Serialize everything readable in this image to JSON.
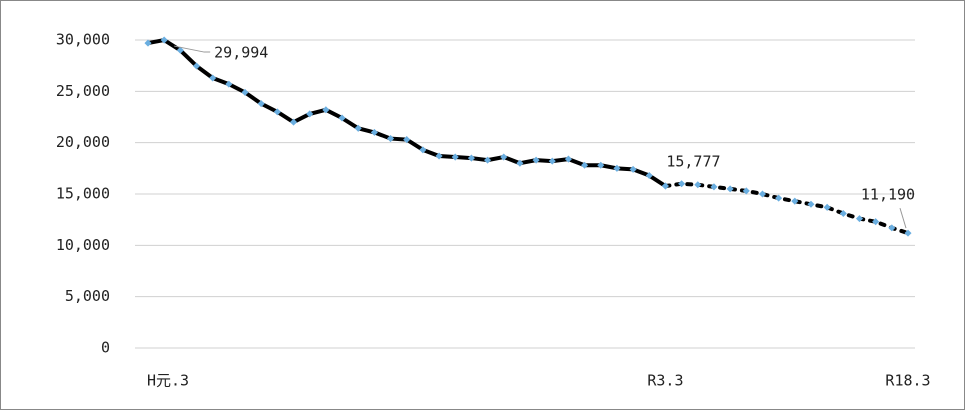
{
  "chart_data": {
    "type": "line",
    "categories": [
      "H元.3",
      null,
      null,
      null,
      null,
      null,
      null,
      null,
      null,
      null,
      null,
      null,
      null,
      null,
      null,
      null,
      null,
      null,
      null,
      null,
      null,
      null,
      null,
      null,
      null,
      null,
      null,
      null,
      null,
      null,
      null,
      null,
      "R3.3",
      null,
      null,
      null,
      null,
      null,
      null,
      null,
      null,
      null,
      null,
      null,
      null,
      null,
      null,
      "R18.3"
    ],
    "series": [
      {
        "color": "#000000",
        "marker_color": "#6aaee0",
        "line_style": "solid",
        "values": [
          29700,
          29994,
          29000,
          27470,
          26300,
          25700,
          24900,
          23800,
          23000,
          22000,
          22800,
          23200,
          22400,
          21400,
          21000,
          20400,
          20300,
          19300,
          18700,
          18600,
          18500,
          18300,
          18600,
          18000,
          18300,
          18200,
          18400,
          17800,
          17800,
          17500,
          17400,
          16800,
          15777,
          null,
          null,
          null,
          null,
          null,
          null,
          null,
          null,
          null,
          null,
          null,
          null,
          null,
          null,
          null
        ],
        "value_labels": [
          null,
          "29,994",
          null,
          null,
          null,
          null,
          null,
          null,
          null,
          null,
          null,
          null,
          null,
          null,
          null,
          null,
          null,
          null,
          null,
          null,
          null,
          null,
          null,
          null,
          null,
          null,
          null,
          null,
          null,
          null,
          null,
          null,
          "15,777",
          null,
          null,
          null,
          null,
          null,
          null,
          null,
          null,
          null,
          null,
          null,
          null,
          null,
          null,
          null
        ]
      },
      {
        "color": "#000000",
        "marker_color": "#6aaee0",
        "line_style": "dotted",
        "values": [
          null,
          null,
          null,
          null,
          null,
          null,
          null,
          null,
          null,
          null,
          null,
          null,
          null,
          null,
          null,
          null,
          null,
          null,
          null,
          null,
          null,
          null,
          null,
          null,
          null,
          null,
          null,
          null,
          null,
          null,
          null,
          null,
          15777,
          16000,
          15900,
          15700,
          15500,
          15300,
          15000,
          14600,
          14300,
          14000,
          13700,
          13100,
          12600,
          12300,
          11700,
          11190
        ],
        "value_labels": [
          null,
          null,
          null,
          null,
          null,
          null,
          null,
          null,
          null,
          null,
          null,
          null,
          null,
          null,
          null,
          null,
          null,
          null,
          null,
          null,
          null,
          null,
          null,
          null,
          null,
          null,
          null,
          null,
          null,
          null,
          null,
          null,
          null,
          null,
          null,
          null,
          null,
          null,
          null,
          null,
          null,
          null,
          null,
          null,
          null,
          null,
          null,
          "11,190"
        ]
      }
    ],
    "ylim": [
      0,
      30000
    ],
    "yticks": [
      0,
      {
        "value": 5000,
        "label": "5,000"
      },
      {
        "value": 10000,
        "label": "10,000"
      },
      {
        "value": 15000,
        "label": "15,000"
      },
      {
        "value": 20000,
        "label": "20,000"
      },
      {
        "value": 25000,
        "label": "25,000"
      },
      {
        "value": 30000,
        "label": "30,000"
      }
    ],
    "grid": true
  }
}
